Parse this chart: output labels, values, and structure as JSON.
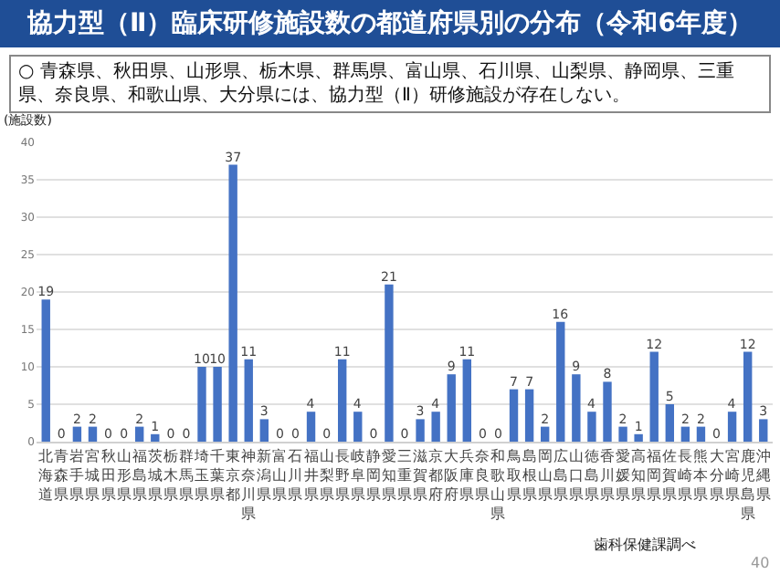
{
  "chart_data": {
    "type": "bar",
    "title": "協力型（Ⅱ）臨床研修施設数の都道府県別の分布（令和6年度）",
    "subtitle": "○ 青森県、秋田県、山形県、栃木県、群馬県、富山県、石川県、山梨県、静岡県、三重県、奈良県、和歌山県、大分県には、協力型（Ⅱ）研修施設が存在しない。",
    "ylabel": "(施設数)",
    "categories": [
      "北海道",
      "青森県",
      "岩手県",
      "宮城県",
      "秋田県",
      "山形県",
      "福島県",
      "茨城県",
      "栃木県",
      "群馬県",
      "埼玉県",
      "千葉県",
      "東京都",
      "神奈川県",
      "新潟県",
      "富山県",
      "石川県",
      "福井県",
      "山梨県",
      "長野県",
      "岐阜県",
      "静岡県",
      "愛知県",
      "三重県",
      "滋賀県",
      "京都府",
      "大阪府",
      "兵庫県",
      "奈良県",
      "和歌山県",
      "鳥取県",
      "島根県",
      "岡山県",
      "広島県",
      "山口県",
      "徳島県",
      "香川県",
      "愛媛県",
      "高知県",
      "福岡県",
      "佐賀県",
      "長崎県",
      "熊本県",
      "大分県",
      "宮崎県",
      "鹿児島県",
      "沖縄県"
    ],
    "values": [
      19,
      0,
      2,
      2,
      0,
      0,
      2,
      1,
      0,
      0,
      10,
      10,
      37,
      11,
      3,
      0,
      0,
      4,
      0,
      11,
      4,
      0,
      21,
      0,
      3,
      4,
      9,
      11,
      0,
      0,
      7,
      7,
      2,
      16,
      9,
      4,
      8,
      2,
      1,
      12,
      5,
      2,
      2,
      0,
      4,
      12,
      3
    ],
    "color": "#4472c4",
    "ylim": [
      0,
      40
    ],
    "yticks": [
      0,
      5,
      10,
      15,
      20,
      25,
      30,
      35,
      40
    ],
    "grid": "y",
    "data_labels": true,
    "annotations": [
      "歯科保健課調べ",
      "40"
    ]
  }
}
